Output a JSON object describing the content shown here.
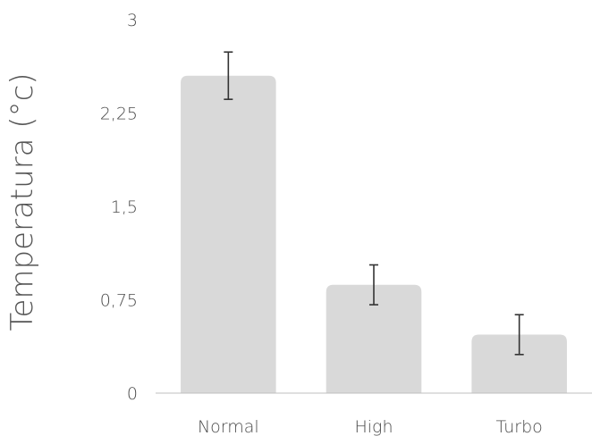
{
  "chart_data": {
    "type": "bar",
    "categories": [
      "Normal",
      "High",
      "Turbo"
    ],
    "values": [
      2.55,
      0.87,
      0.47
    ],
    "error": [
      0.19,
      0.16,
      0.16
    ],
    "title": "",
    "xlabel": "",
    "ylabel": "Temperatura (°c)",
    "ylim": [
      0,
      3
    ],
    "yticks": [
      0,
      0.75,
      1.5,
      2.25,
      3
    ],
    "yticklabels": [
      "0",
      "0,75",
      "1,5",
      "2,25",
      "3"
    ],
    "grid": false,
    "legend": "none",
    "colors": {
      "bar": "#d9d9d9",
      "error_bar": "#333333",
      "axis": "#bfbfbf",
      "text": "#4a4a4a"
    }
  }
}
